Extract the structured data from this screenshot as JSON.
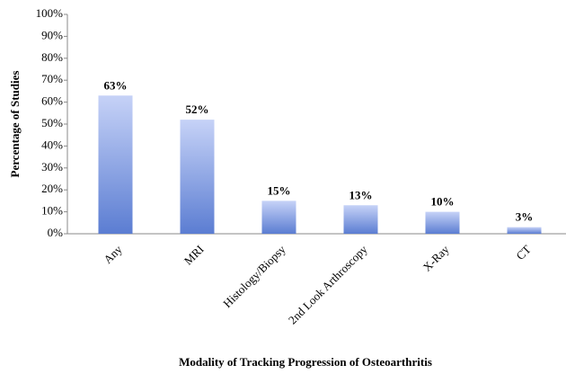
{
  "chart_data": {
    "type": "bar",
    "categories": [
      "Any",
      "MRI",
      "Histology/Biopsy",
      "2nd Look Arthroscopy",
      "X-Ray",
      "CT"
    ],
    "values": [
      63,
      52,
      15,
      13,
      10,
      3
    ],
    "value_labels": [
      "63%",
      "52%",
      "15%",
      "13%",
      "10%",
      "3%"
    ],
    "color": "#5b7dd2",
    "ylabel": "Percentage of Studies",
    "xlabel": "Modality of Tracking Progression of Osteoarthritis",
    "ylim": [
      0,
      100
    ],
    "yticks": [
      {
        "value": 0,
        "label": "0%"
      },
      {
        "value": 10,
        "label": "10%"
      },
      {
        "value": 20,
        "label": "20%"
      },
      {
        "value": 30,
        "label": "30%"
      },
      {
        "value": 40,
        "label": "40%"
      },
      {
        "value": 50,
        "label": "50%"
      },
      {
        "value": 60,
        "label": "60%"
      },
      {
        "value": 70,
        "label": "70%"
      },
      {
        "value": 80,
        "label": "80%"
      },
      {
        "value": 90,
        "label": "90%"
      },
      {
        "value": 100,
        "label": "100%"
      }
    ],
    "grid": false
  }
}
